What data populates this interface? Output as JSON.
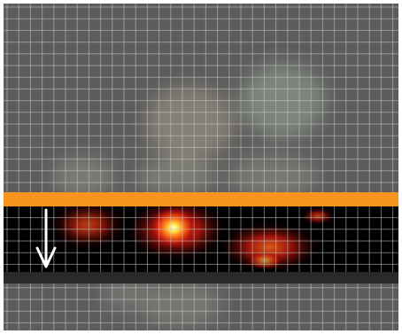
{
  "image": {
    "kind": "microscopy-fluorescence-overlay",
    "colors": {
      "background": "#5c5c5c",
      "grid": "#c9c9c9",
      "band_top": "#f7941d",
      "band_bottom": "#2a2a2a",
      "band_fill": "#000000",
      "arrow": "#ffffff"
    },
    "icons": [
      "down-arrow-icon"
    ]
  }
}
